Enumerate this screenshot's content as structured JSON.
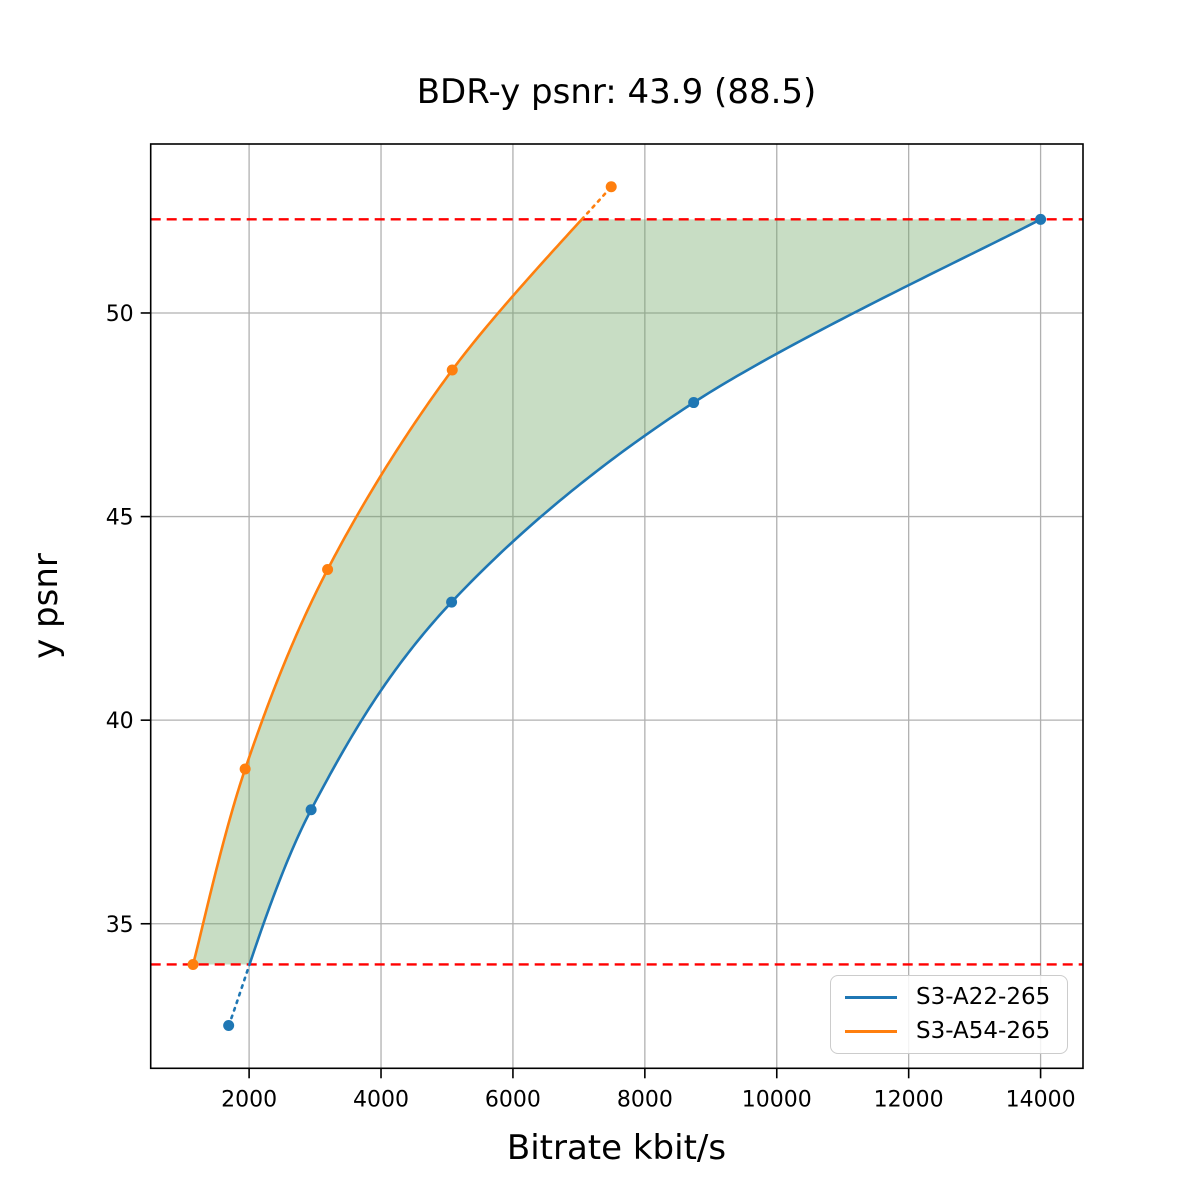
{
  "title": "BDR-y psnr: 43.9 (88.5)",
  "axes": {
    "xlabel": "Bitrate kbit/s",
    "ylabel": "y psnr"
  },
  "legend": {
    "items": [
      {
        "label": "S3-A22-265",
        "color": "#1f77b4"
      },
      {
        "label": "S3-A54-265",
        "color": "#ff7f0e"
      }
    ]
  },
  "chart_data": {
    "type": "line",
    "title": "BDR-y psnr: 43.9 (88.5)",
    "xlabel": "Bitrate kbit/s",
    "ylabel": "y psnr",
    "xlim": [
      508,
      14643
    ],
    "ylim": [
      31.45,
      54.15
    ],
    "xticks": [
      2000,
      4000,
      6000,
      8000,
      10000,
      12000,
      14000
    ],
    "yticks": [
      35,
      40,
      45,
      50
    ],
    "grid": true,
    "grid_color": "#b0b0b0",
    "legend_position": "lower right",
    "series": [
      {
        "name": "S3-A22-265",
        "color": "#1f77b4",
        "points": [
          [
            1690,
            32.5
          ],
          [
            2940,
            37.8
          ],
          [
            5070,
            42.9
          ],
          [
            8740,
            47.8
          ],
          [
            14000,
            52.3
          ]
        ]
      },
      {
        "name": "S3-A54-265",
        "color": "#ff7f0e",
        "points": [
          [
            1150,
            34.0
          ],
          [
            1940,
            38.8
          ],
          [
            3190,
            43.7
          ],
          [
            5080,
            48.6
          ],
          [
            7490,
            53.1
          ]
        ]
      }
    ],
    "hlines": {
      "values": [
        34.0,
        52.3
      ],
      "color": "#ff0000",
      "style": "dashed"
    },
    "overlap_interval": [
      34.0,
      52.3
    ],
    "out_of_overlap_style": "dotted",
    "fill_between": {
      "between": [
        "S3-A54-265",
        "S3-A22-265"
      ],
      "y_range": [
        34.0,
        52.3
      ],
      "color": "rgba(110,165,100,0.38)"
    }
  }
}
